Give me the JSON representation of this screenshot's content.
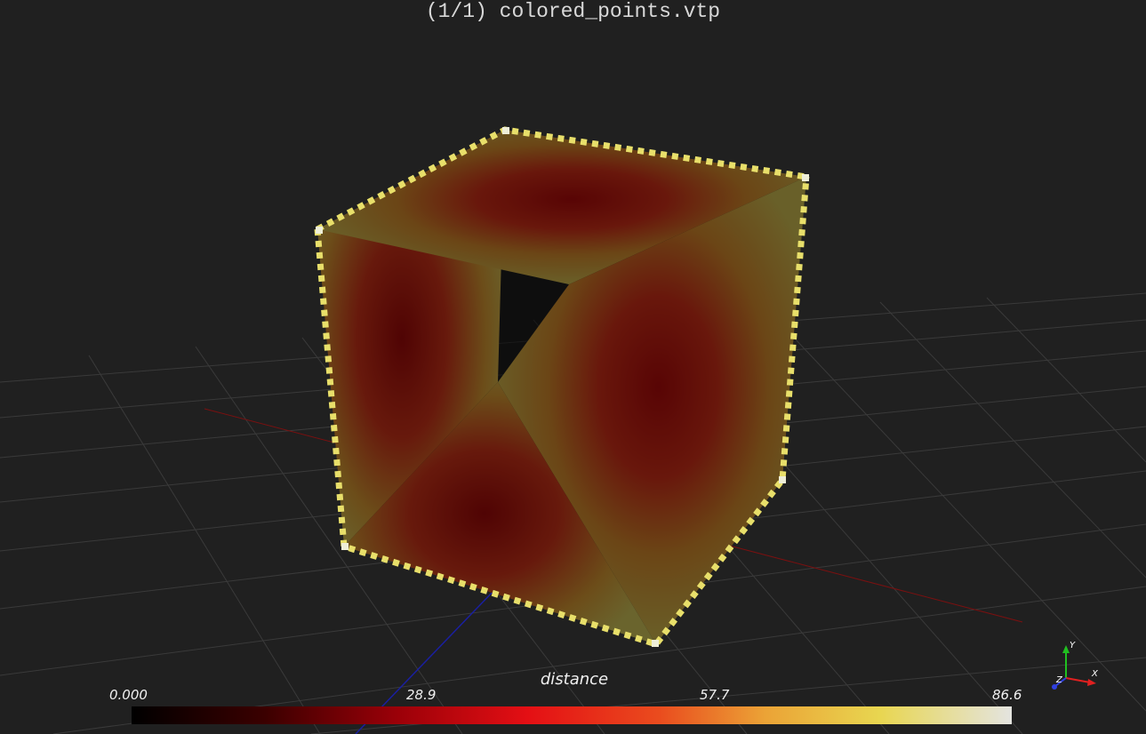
{
  "window": {
    "title": "(1/1) colored_points.vtp",
    "background": "#202020"
  },
  "scene": {
    "object": "colored point cloud cube",
    "colormap": "hot",
    "ground_grid": true
  },
  "scalar_bar": {
    "title": "distance",
    "tick_labels": [
      "0.000",
      "28.9",
      "57.7",
      "86.6"
    ],
    "range": [
      0.0,
      86.6
    ]
  },
  "axes_widget": {
    "labels": {
      "x": "X",
      "y": "Y",
      "z": "Z"
    },
    "colors": {
      "x": "#e02020",
      "y": "#20c020",
      "z": "#3040e0"
    }
  }
}
